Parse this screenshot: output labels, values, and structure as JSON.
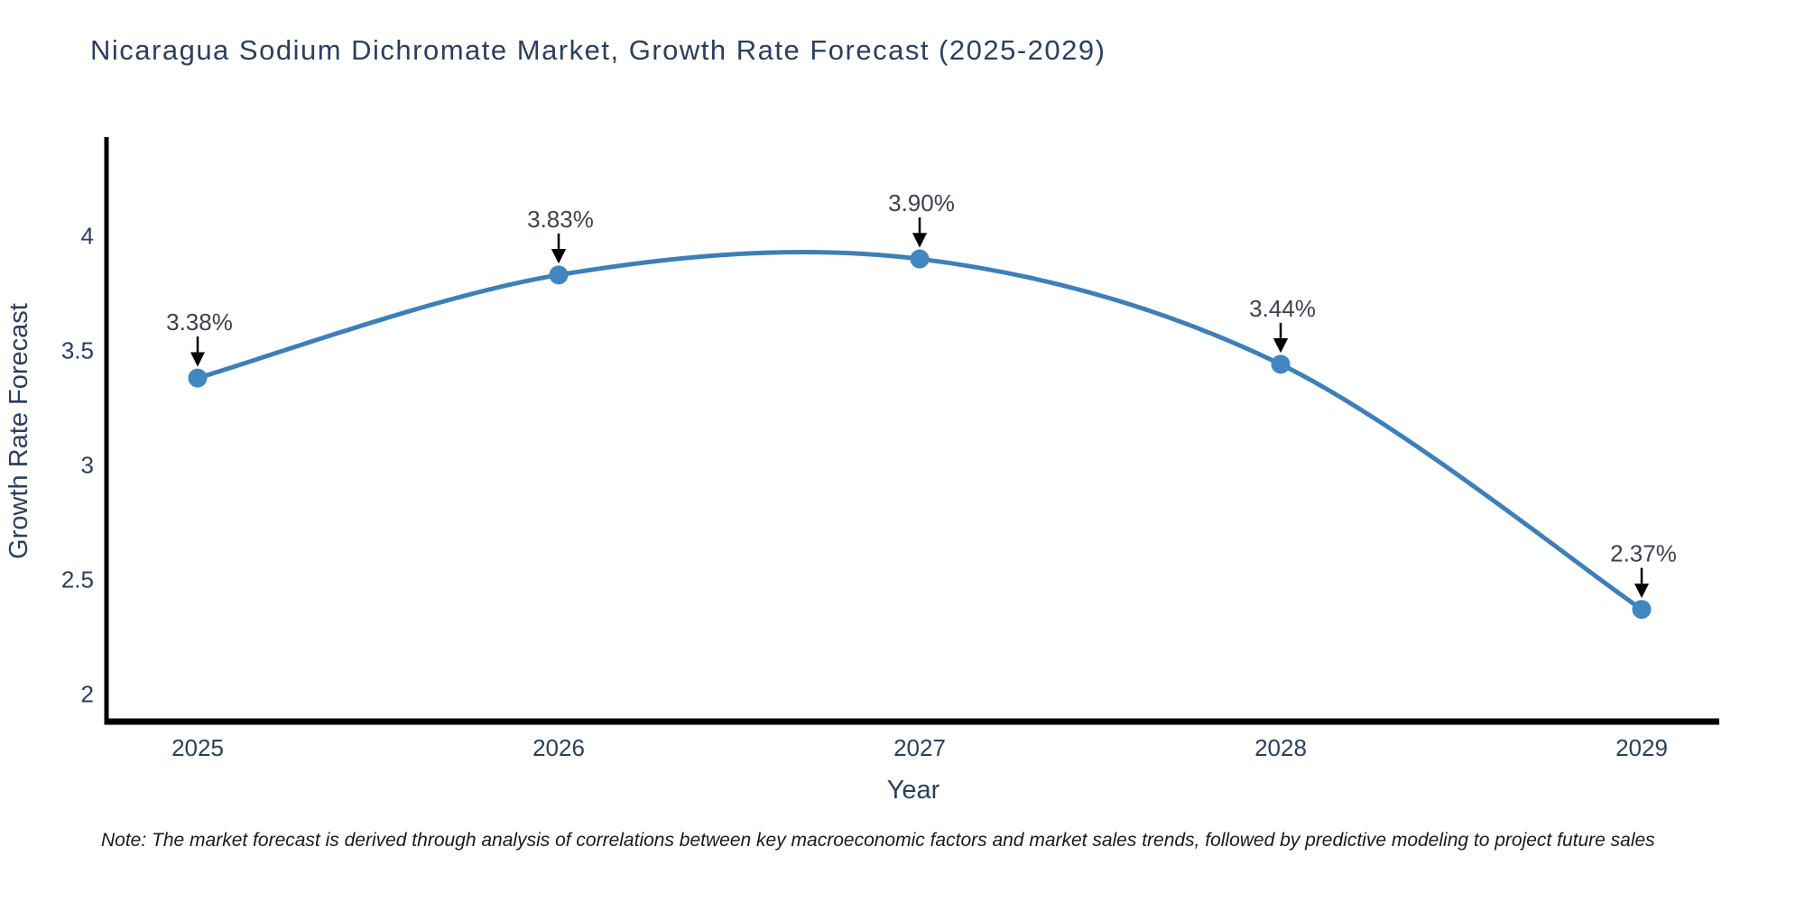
{
  "title": "Nicaragua Sodium Dichromate Market, Growth Rate Forecast (2025-2029)",
  "note": "Note: The market forecast is derived through analysis of correlations between key macroeconomic factors and market sales trends, followed by predictive modeling to project future sales",
  "chart_data": {
    "type": "line",
    "title": "Nicaragua Sodium Dichromate Market, Growth Rate Forecast (2025-2029)",
    "xlabel": "Year",
    "ylabel": "Growth Rate Forecast",
    "categories": [
      "2025",
      "2026",
      "2027",
      "2028",
      "2029"
    ],
    "values": [
      3.38,
      3.83,
      3.9,
      3.44,
      2.37
    ],
    "point_labels": [
      "3.38%",
      "3.83%",
      "3.90%",
      "3.44%",
      "2.37%"
    ],
    "yticks": [
      "2",
      "2.5",
      "3",
      "3.5",
      "4"
    ],
    "ytick_values": [
      2,
      2.5,
      3,
      3.5,
      4
    ],
    "ylim": [
      1.88,
      4.42
    ],
    "grid": "off",
    "legend": "none",
    "line_shape": "spline",
    "colors": {
      "line": "#3d7fb8",
      "marker": "#4186bf",
      "axis": "#000000",
      "axis_text": "#2a3f5f",
      "annotation_text": "#3d434d",
      "arrow": "#000000"
    }
  }
}
